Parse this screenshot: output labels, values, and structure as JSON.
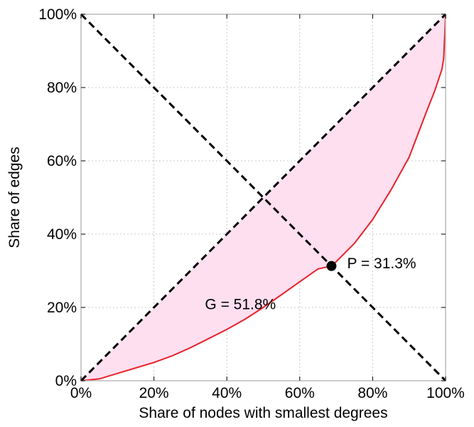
{
  "chart_data": {
    "type": "line",
    "xlabel": "Share of nodes with smallest degrees",
    "ylabel": "Share of edges",
    "xlim": [
      0,
      100
    ],
    "ylim": [
      0,
      100
    ],
    "x_ticks": [
      "0%",
      "20%",
      "40%",
      "60%",
      "80%",
      "100%"
    ],
    "y_ticks": [
      "0%",
      "20%",
      "40%",
      "60%",
      "80%",
      "100%"
    ],
    "grid": true,
    "series": [
      {
        "role": "lorenz curve",
        "color": "#e8222a",
        "style": "solid",
        "x": [
          0,
          5,
          10,
          15,
          20,
          25,
          30,
          35,
          40,
          45,
          50,
          55,
          60,
          65,
          68.7,
          70,
          75,
          80,
          85,
          90,
          95,
          97,
          99,
          99.5,
          100
        ],
        "y": [
          0,
          0.5,
          2,
          3.5,
          5,
          6.8,
          9,
          11.5,
          14,
          16.8,
          20,
          23.5,
          27,
          30.5,
          31.3,
          32.5,
          37.5,
          44,
          52,
          61,
          74,
          79,
          85,
          88,
          100
        ]
      },
      {
        "role": "equality line",
        "color": "#000000",
        "style": "dashed",
        "x": [
          0,
          100
        ],
        "y": [
          0,
          100
        ]
      },
      {
        "role": "anti-diagonal",
        "color": "#000000",
        "style": "dashed",
        "x": [
          0,
          100
        ],
        "y": [
          100,
          0
        ]
      }
    ],
    "fill": {
      "between": "equality line and lorenz curve",
      "color": "#fddff0"
    },
    "point": {
      "x": 68.7,
      "y": 31.3,
      "color": "#000000"
    },
    "annotations": [
      {
        "text": "G = 51.8%",
        "x": 34,
        "y": 19.5
      },
      {
        "text": "P = 31.3%",
        "x": 73,
        "y": 30.7
      }
    ]
  }
}
